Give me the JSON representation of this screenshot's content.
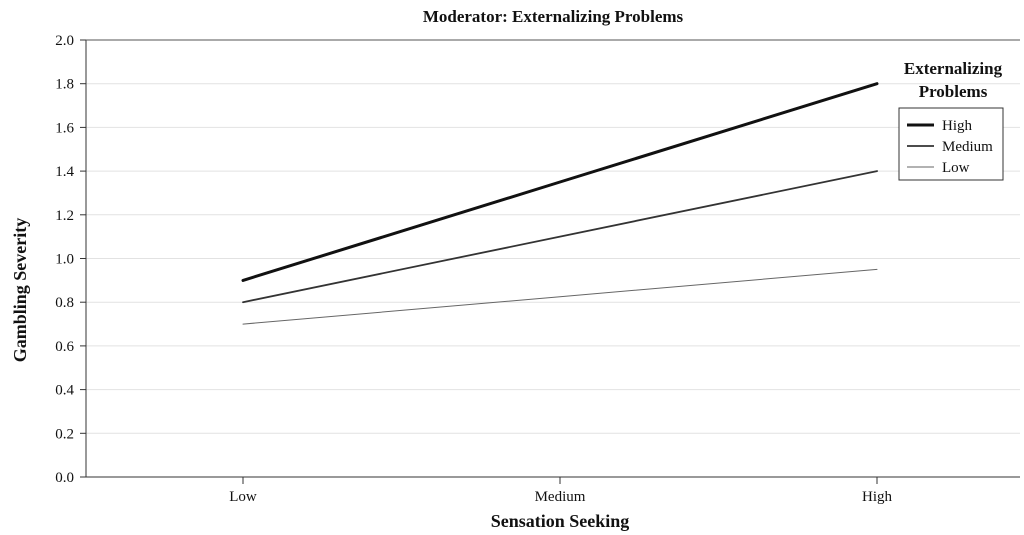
{
  "chart_data": {
    "type": "line",
    "title": "Moderator: Externalizing Problems",
    "xlabel": "Sensation Seeking",
    "ylabel": "Gambling Severity",
    "categories": [
      "Low",
      "Medium",
      "High"
    ],
    "ylim": [
      0,
      2
    ],
    "yticks": [
      "0.0",
      "0.2",
      "0.4",
      "0.6",
      "0.8",
      "1.0",
      "1.2",
      "1.4",
      "1.6",
      "1.8",
      "2.0"
    ],
    "grid": true,
    "legend": {
      "title_line1": "Externalizing",
      "title_line2": "Problems",
      "position": "top-right"
    },
    "series": [
      {
        "name": "High",
        "values": [
          0.9,
          1.35,
          1.8
        ],
        "color": "#111111"
      },
      {
        "name": "Medium",
        "values": [
          0.8,
          1.1,
          1.4
        ],
        "color": "#333333"
      },
      {
        "name": "Low",
        "values": [
          0.7,
          0.825,
          0.95
        ],
        "color": "#666666"
      }
    ]
  }
}
